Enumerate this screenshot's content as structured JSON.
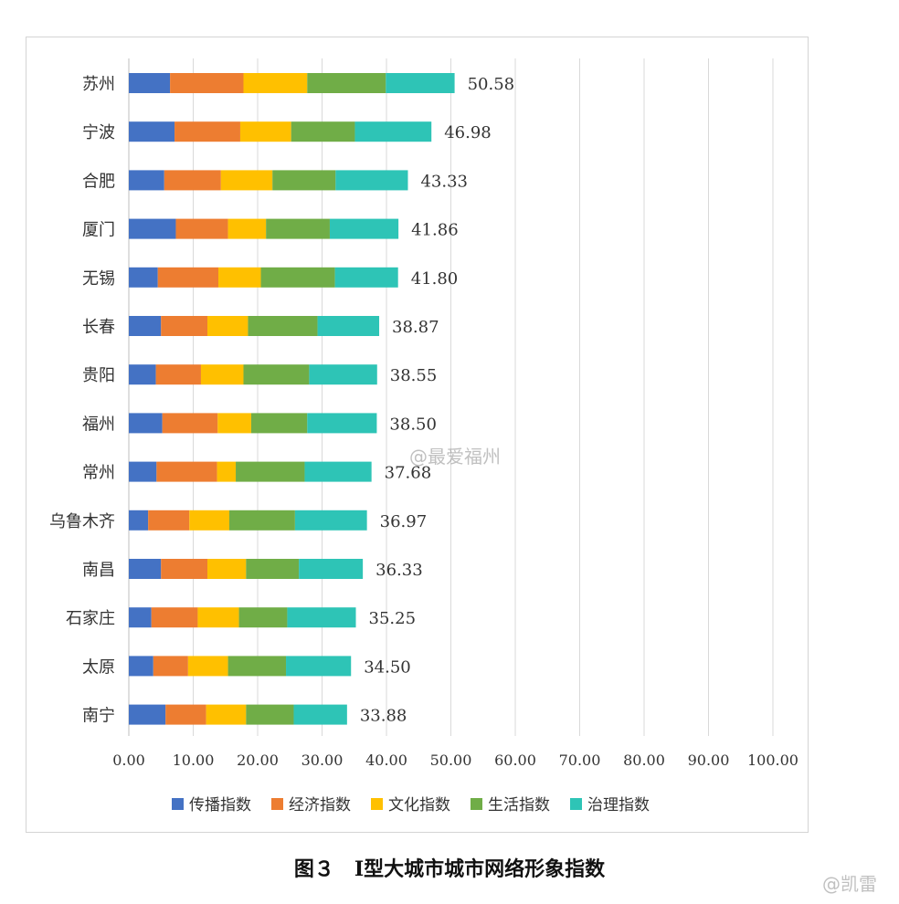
{
  "caption": "图３　Ⅰ型大城市城市网络形象指数",
  "watermarks": [
    "@最爱福州",
    "@凯雷"
  ],
  "chart_data": {
    "type": "bar",
    "orientation": "horizontal",
    "stacked": true,
    "categories": [
      "苏州",
      "宁波",
      "合肥",
      "厦门",
      "无锡",
      "长春",
      "贵阳",
      "福州",
      "常州",
      "乌鲁木齐",
      "南昌",
      "石家庄",
      "太原",
      "南宁"
    ],
    "totals": [
      "50.58",
      "46.98",
      "43.33",
      "41.86",
      "41.80",
      "38.87",
      "38.55",
      "38.50",
      "37.68",
      "36.97",
      "36.33",
      "35.25",
      "34.50",
      "33.88"
    ],
    "series": [
      {
        "name": "传播指数",
        "color": "#4472c4",
        "values": [
          6.4,
          7.1,
          5.5,
          7.3,
          4.5,
          5.0,
          4.2,
          5.2,
          4.3,
          3.0,
          5.0,
          3.5,
          3.8,
          5.7
        ]
      },
      {
        "name": "经济指数",
        "color": "#ed7d31",
        "values": [
          11.4,
          10.2,
          8.8,
          8.1,
          9.4,
          7.2,
          7.0,
          8.6,
          9.4,
          6.4,
          7.2,
          7.2,
          5.4,
          6.3
        ]
      },
      {
        "name": "文化指数",
        "color": "#ffc000",
        "values": [
          9.9,
          7.9,
          8.0,
          5.9,
          6.6,
          6.3,
          6.6,
          5.2,
          2.9,
          6.2,
          6.0,
          6.4,
          6.2,
          6.2
        ]
      },
      {
        "name": "生活指数",
        "color": "#70ad47",
        "values": [
          12.2,
          9.9,
          9.8,
          9.9,
          11.5,
          10.8,
          10.2,
          8.7,
          10.7,
          10.2,
          8.2,
          7.5,
          9.0,
          7.4
        ]
      },
      {
        "name": "治理指数",
        "color": "#2ec4b6",
        "values": [
          10.68,
          11.88,
          11.23,
          10.66,
          9.8,
          9.57,
          10.55,
          10.8,
          10.38,
          11.17,
          9.93,
          10.65,
          10.1,
          8.28
        ]
      }
    ],
    "xlim": [
      0,
      100
    ],
    "xticks": [
      "0.00",
      "10.00",
      "20.00",
      "30.00",
      "40.00",
      "50.00",
      "60.00",
      "70.00",
      "80.00",
      "90.00",
      "100.00"
    ],
    "grid": "vertical",
    "legend": "bottom"
  }
}
